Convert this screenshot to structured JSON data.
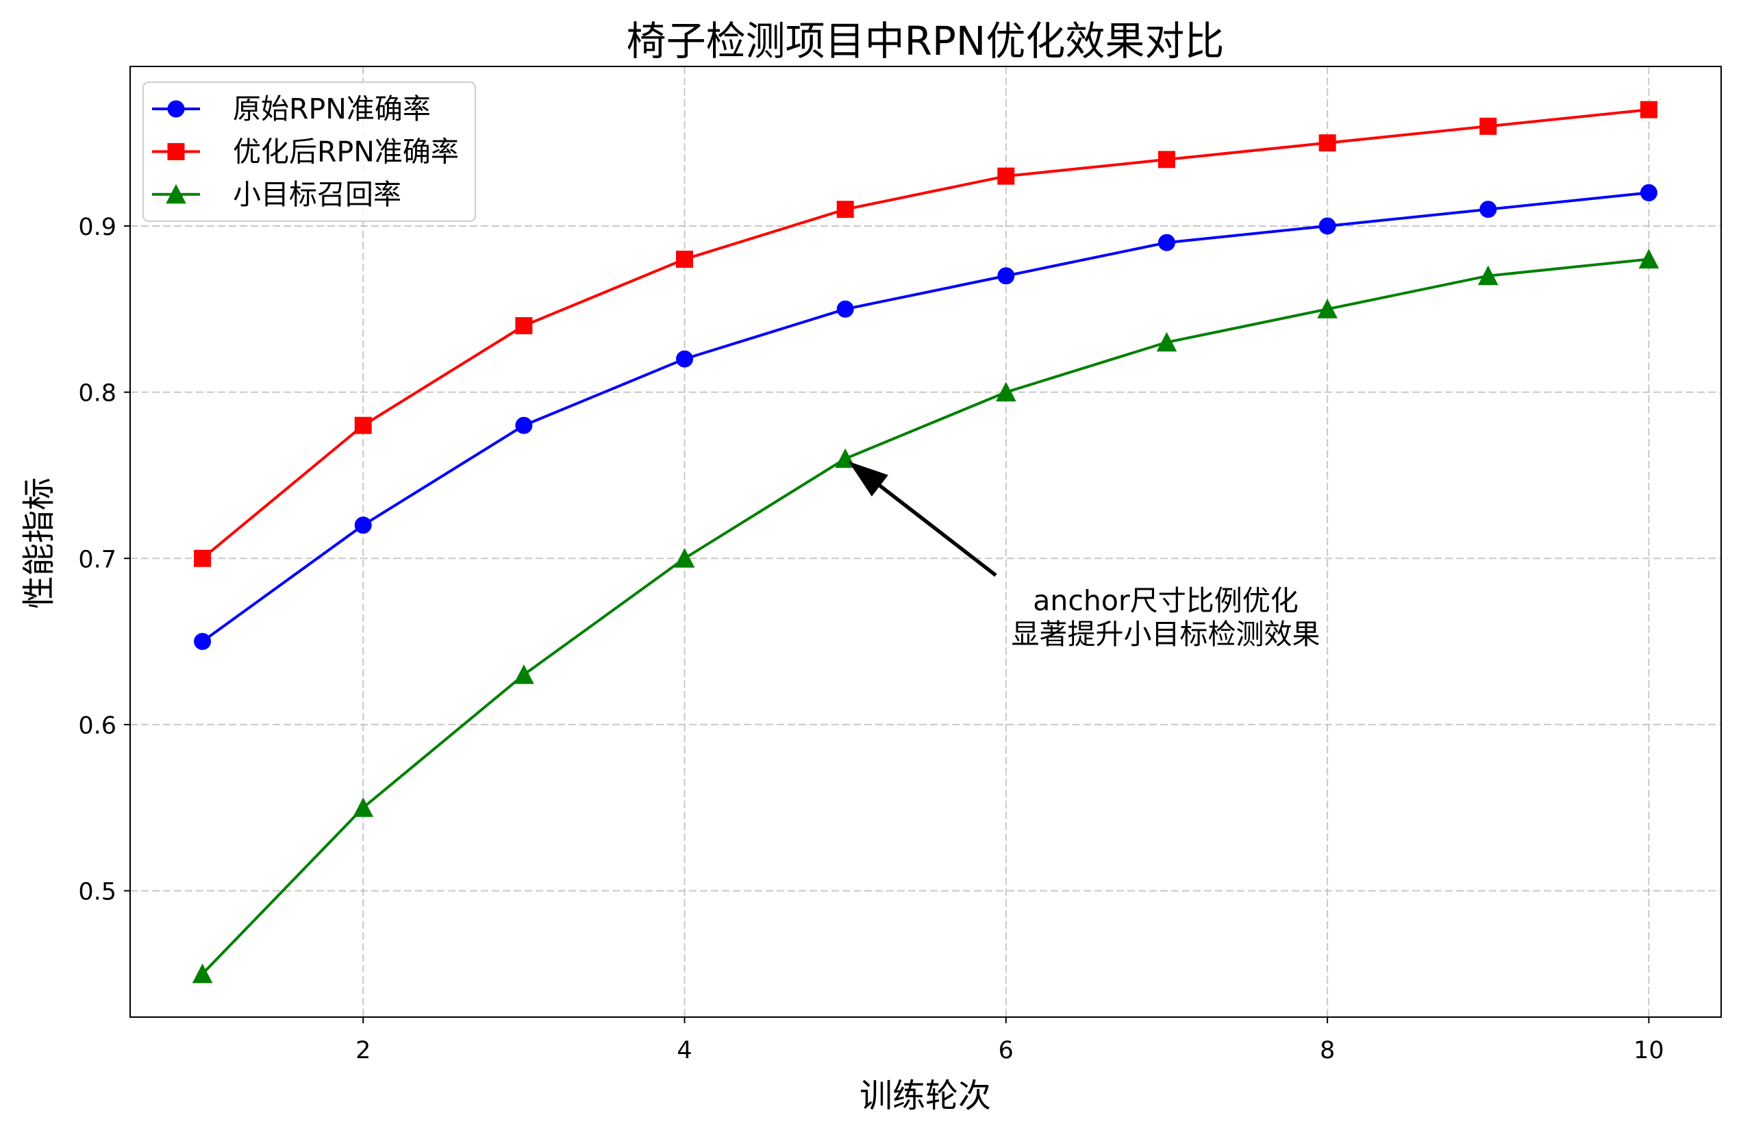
{
  "chart_data": {
    "type": "line",
    "title": "椅子检测项目中RPN优化效果对比",
    "xlabel": "训练轮次",
    "ylabel": "性能指标",
    "x": [
      1,
      2,
      3,
      4,
      5,
      6,
      7,
      8,
      9,
      10
    ],
    "xlim": [
      0.55,
      10.45
    ],
    "ylim": [
      0.424,
      0.996
    ],
    "xticks": [
      2,
      4,
      6,
      8,
      10
    ],
    "yticks": [
      0.5,
      0.6,
      0.7,
      0.8,
      0.9
    ],
    "grid": true,
    "legend": "upper-left",
    "series": [
      {
        "name": "原始RPN准确率",
        "color": "#0000ff",
        "marker": "circle",
        "values": [
          0.65,
          0.72,
          0.78,
          0.82,
          0.85,
          0.87,
          0.89,
          0.9,
          0.91,
          0.92
        ]
      },
      {
        "name": "优化后RPN准确率",
        "color": "#ff0000",
        "marker": "square",
        "values": [
          0.7,
          0.78,
          0.84,
          0.88,
          0.91,
          0.93,
          0.94,
          0.95,
          0.96,
          0.97
        ]
      },
      {
        "name": "小目标召回率",
        "color": "#008000",
        "marker": "triangle-up",
        "values": [
          0.45,
          0.55,
          0.63,
          0.7,
          0.76,
          0.8,
          0.83,
          0.85,
          0.87,
          0.88
        ]
      }
    ],
    "annotation": {
      "lines": [
        "anchor尺寸比例优化",
        "显著提升小目标检测效果"
      ],
      "x": 5,
      "y": 0.76
    }
  }
}
